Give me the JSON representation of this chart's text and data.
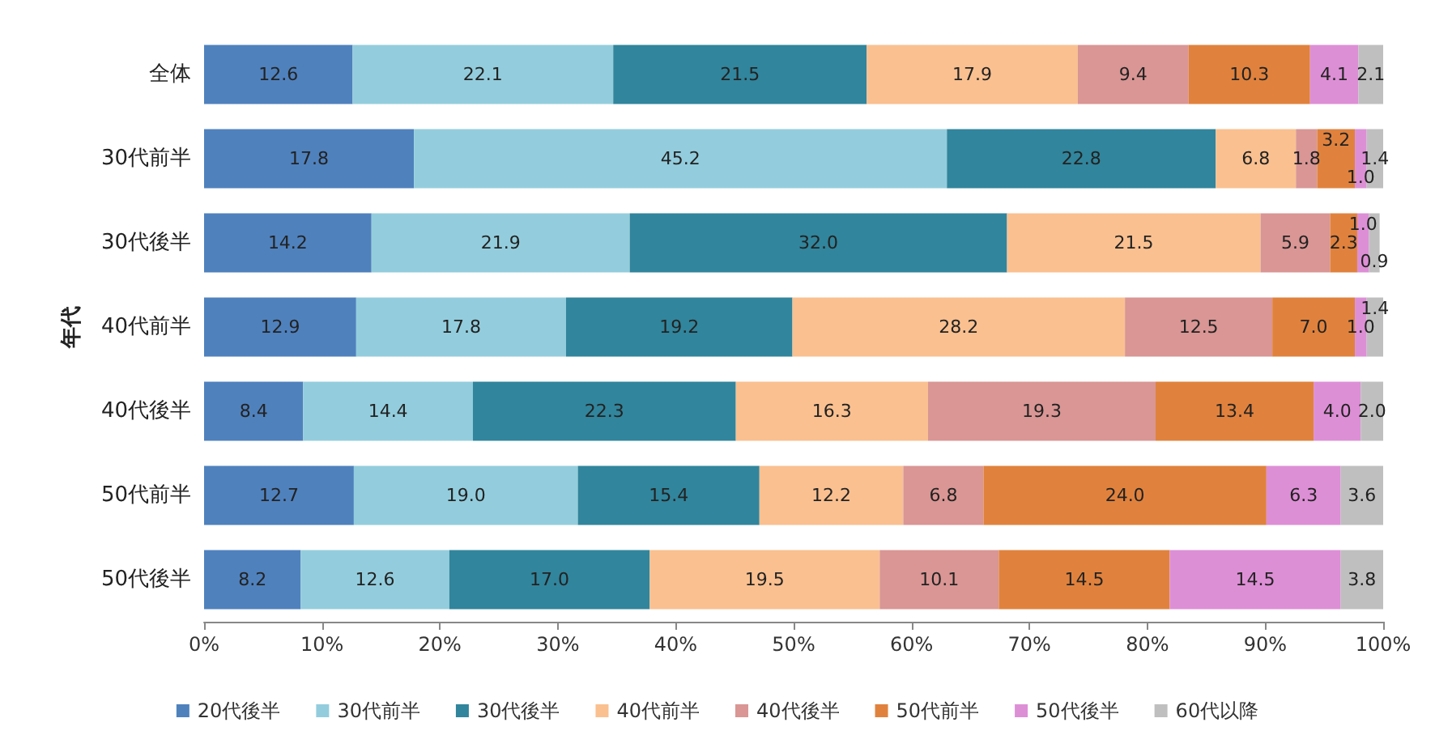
{
  "chart_data": {
    "type": "bar",
    "orientation": "horizontal",
    "stacked": true,
    "ylabel": "年代",
    "categories": [
      "全体",
      "30代前半",
      "30代後半",
      "40代前半",
      "40代後半",
      "50代前半",
      "50代後半"
    ],
    "series": [
      {
        "name": "20代後半",
        "color": "#4f81bd",
        "values": [
          12.6,
          17.8,
          14.2,
          12.9,
          8.4,
          12.7,
          8.2
        ]
      },
      {
        "name": "30代前半",
        "color": "#93cddd",
        "values": [
          22.1,
          45.2,
          21.9,
          17.8,
          14.4,
          19.0,
          12.6
        ],
        "value_labels": [
          "22.1",
          "45.2",
          "21.9",
          "17.8",
          "14.4",
          "19.0",
          "12.6"
        ]
      },
      {
        "name": "30代後半",
        "color": "#31859c",
        "values": [
          21.5,
          22.8,
          32.0,
          19.2,
          22.3,
          15.4,
          17.0
        ],
        "value_labels": [
          "21.5",
          "22.8",
          "32.0",
          "19.2",
          "22.3",
          "15.4",
          "17.0"
        ]
      },
      {
        "name": "40代前半",
        "color": "#fac090",
        "values": [
          17.9,
          6.8,
          21.5,
          28.2,
          16.3,
          12.2,
          19.5
        ]
      },
      {
        "name": "40代後半",
        "color": "#d99694",
        "values": [
          9.4,
          1.8,
          5.9,
          12.5,
          19.3,
          6.8,
          10.1
        ]
      },
      {
        "name": "50代前半",
        "color": "#e0823d",
        "values": [
          10.3,
          3.2,
          2.3,
          7.0,
          13.4,
          24.0,
          14.5
        ],
        "value_labels": [
          "10.3",
          "3.2",
          "2.3",
          "7.0",
          "13.4",
          "24.0",
          "14.5"
        ]
      },
      {
        "name": "50代後半",
        "color": "#dd8fd6",
        "values": [
          4.1,
          1.0,
          1.0,
          1.0,
          4.0,
          6.3,
          14.5
        ],
        "value_labels": [
          "4.1",
          "1.0",
          "1.0",
          "1.0",
          "4.0",
          "6.3",
          "14.5"
        ]
      },
      {
        "name": "60代以降",
        "color": "#bfbfbf",
        "values": [
          2.1,
          1.4,
          0.9,
          1.4,
          2.0,
          3.6,
          3.8
        ],
        "value_labels": [
          "2.1",
          "1.4",
          "0.9",
          "1.4",
          "2.0",
          "3.6",
          "3.8"
        ]
      }
    ],
    "xlim": [
      0,
      100
    ],
    "xticks": [
      {
        "value": 0,
        "label": "0%"
      },
      {
        "value": 10,
        "label": "10%"
      },
      {
        "value": 20,
        "label": "20%"
      },
      {
        "value": 30,
        "label": "30%"
      },
      {
        "value": 40,
        "label": "40%"
      },
      {
        "value": 50,
        "label": "50%"
      },
      {
        "value": 60,
        "label": "60%"
      },
      {
        "value": 70,
        "label": "70%"
      },
      {
        "value": 80,
        "label": "80%"
      },
      {
        "value": 90,
        "label": "90%"
      },
      {
        "value": 100,
        "label": "100%"
      }
    ],
    "grid": false,
    "legend": "bottom",
    "data_labels": true
  }
}
